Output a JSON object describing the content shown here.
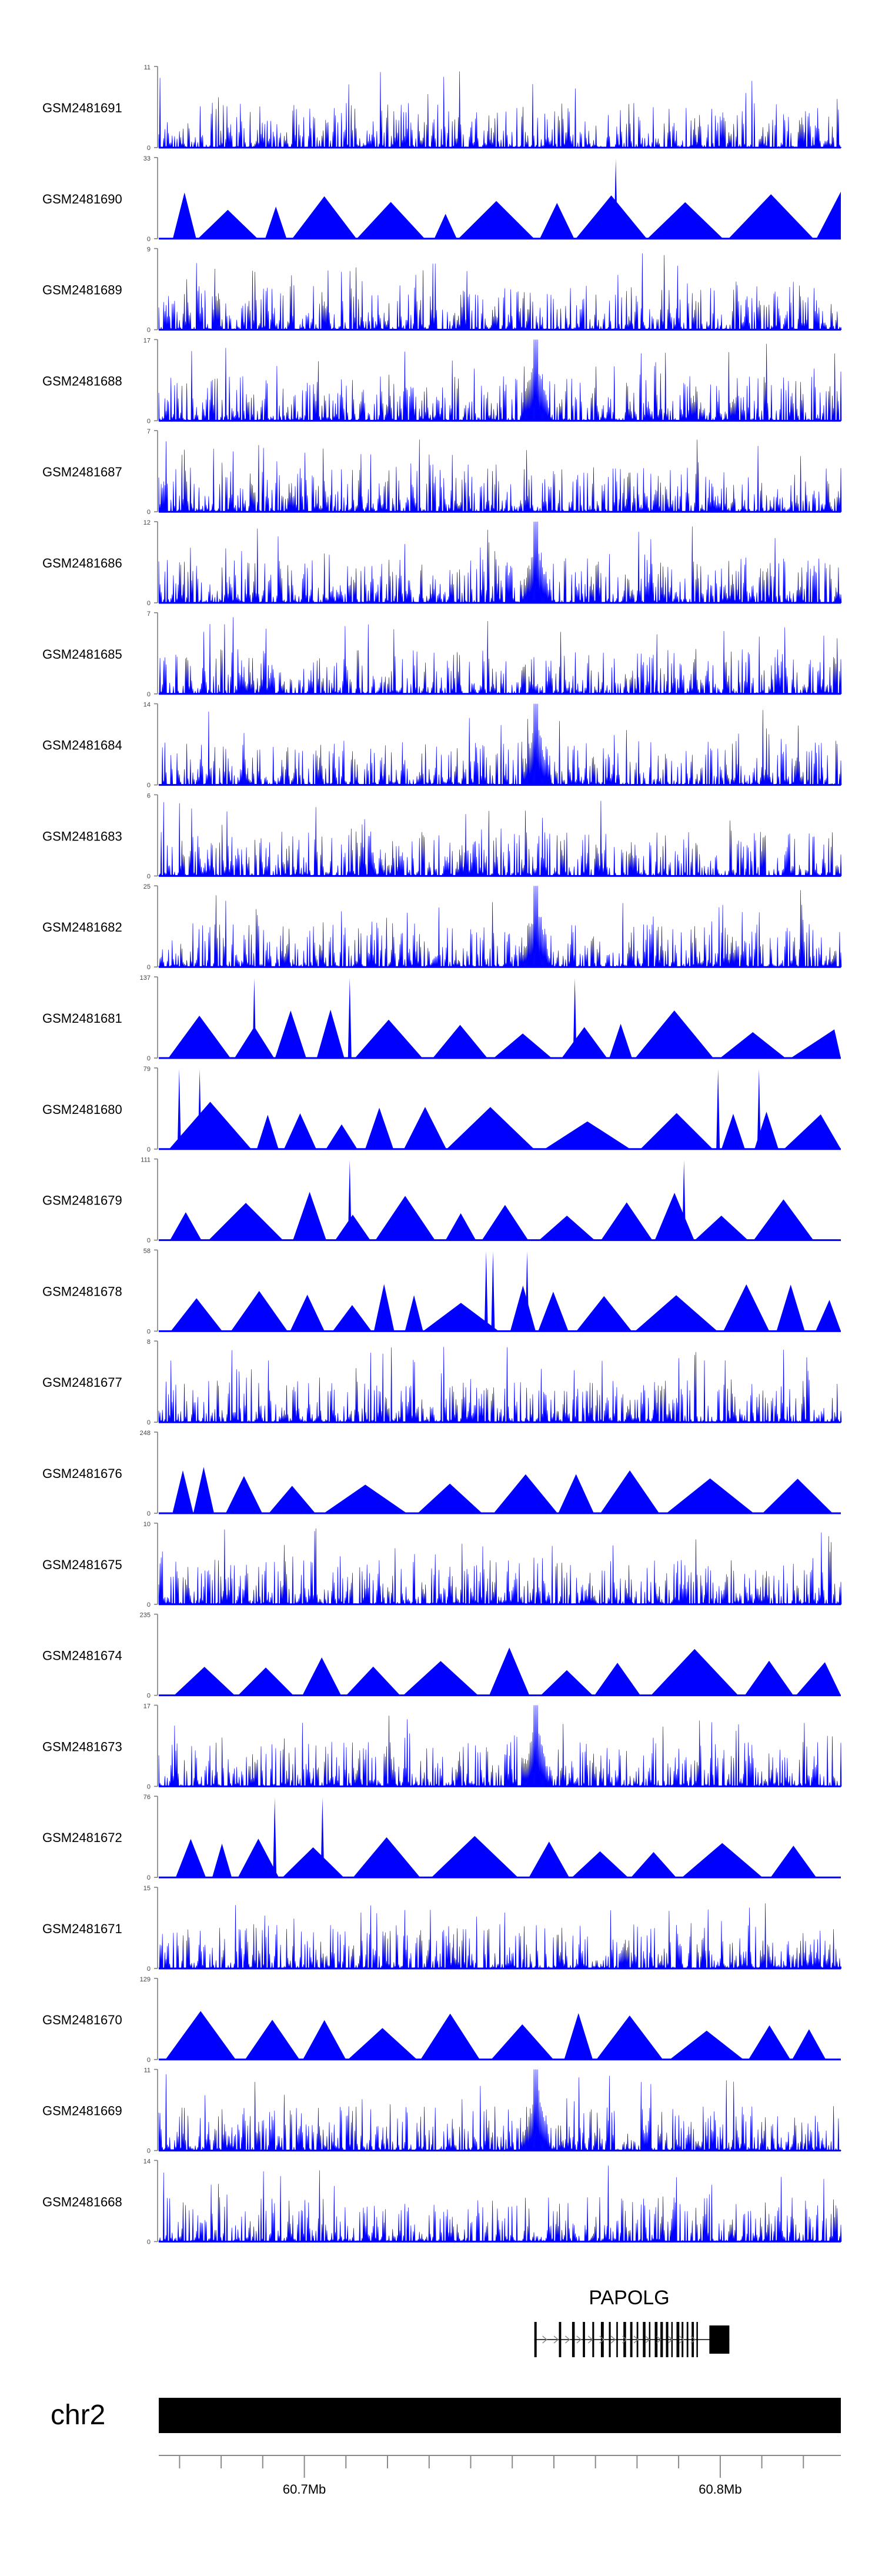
{
  "chart_data": {
    "type": "area",
    "description_level": "genome browser coverage tracks",
    "tracks": [
      {
        "name": "GSM2481691",
        "ymax": "11",
        "ymin": "0",
        "style": "noise",
        "peak": false
      },
      {
        "name": "GSM2481690",
        "ymax": "33",
        "ymin": "0",
        "style": "triangles",
        "spikes": [
          0.67
        ]
      },
      {
        "name": "GSM2481689",
        "ymax": "9",
        "ymin": "0",
        "style": "noise",
        "peak": false
      },
      {
        "name": "GSM2481688",
        "ymax": "17",
        "ymin": "0",
        "style": "noise",
        "peak": true
      },
      {
        "name": "GSM2481687",
        "ymax": "7",
        "ymin": "0",
        "style": "noise",
        "peak": false
      },
      {
        "name": "GSM2481686",
        "ymax": "12",
        "ymin": "0",
        "style": "noise",
        "peak": true
      },
      {
        "name": "GSM2481685",
        "ymax": "7",
        "ymin": "0",
        "style": "noise",
        "peak": false
      },
      {
        "name": "GSM2481684",
        "ymax": "14",
        "ymin": "0",
        "style": "noise",
        "peak": true
      },
      {
        "name": "GSM2481683",
        "ymax": "6",
        "ymin": "0",
        "style": "noise",
        "peak": false
      },
      {
        "name": "GSM2481682",
        "ymax": "25",
        "ymin": "0",
        "style": "noise",
        "peak": true
      },
      {
        "name": "GSM2481681",
        "ymax": "137",
        "ymin": "0",
        "style": "triangles",
        "spikes": [
          0.14,
          0.28,
          0.61
        ]
      },
      {
        "name": "GSM2481680",
        "ymax": "79",
        "ymin": "0",
        "style": "triangles",
        "spikes": [
          0.03,
          0.06,
          0.82,
          0.88
        ]
      },
      {
        "name": "GSM2481679",
        "ymax": "111",
        "ymin": "0",
        "style": "triangles",
        "spikes": [
          0.28,
          0.77
        ]
      },
      {
        "name": "GSM2481678",
        "ymax": "58",
        "ymin": "0",
        "style": "triangles",
        "spikes": [
          0.48,
          0.49,
          0.54
        ]
      },
      {
        "name": "GSM2481677",
        "ymax": "8",
        "ymin": "0",
        "style": "noise",
        "peak": false
      },
      {
        "name": "GSM2481676",
        "ymax": "248",
        "ymin": "0",
        "style": "triangles",
        "spikes": []
      },
      {
        "name": "GSM2481675",
        "ymax": "10",
        "ymin": "0",
        "style": "noise",
        "peak": false
      },
      {
        "name": "GSM2481674",
        "ymax": "235",
        "ymin": "0",
        "style": "triangles",
        "spikes": []
      },
      {
        "name": "GSM2481673",
        "ymax": "17",
        "ymin": "0",
        "style": "noise",
        "peak": true
      },
      {
        "name": "GSM2481672",
        "ymax": "76",
        "ymin": "0",
        "style": "triangles",
        "spikes": [
          0.17,
          0.24
        ]
      },
      {
        "name": "GSM2481671",
        "ymax": "15",
        "ymin": "0",
        "style": "noise",
        "peak": false
      },
      {
        "name": "GSM2481670",
        "ymax": "129",
        "ymin": "0",
        "style": "triangles",
        "spikes": []
      },
      {
        "name": "GSM2481669",
        "ymax": "11",
        "ymin": "0",
        "style": "noise",
        "peak": true
      },
      {
        "name": "GSM2481668",
        "ymax": "14",
        "ymin": "0",
        "style": "noise",
        "peak": false
      }
    ],
    "gene": {
      "name": "PAPOLG",
      "start": 60.7553,
      "end": 60.8022,
      "strand": "+"
    },
    "chromosome": "chr2",
    "x_axis": {
      "range": [
        60.665,
        60.829
      ],
      "major_ticks": [
        60.7,
        60.8
      ],
      "major_labels": [
        "60.7Mb",
        "60.8Mb"
      ],
      "minor_step": 0.01
    },
    "colors": {
      "signal": "#0000ff",
      "ideogram": "#000000",
      "gene": "#000000",
      "axis": "#000000"
    }
  }
}
